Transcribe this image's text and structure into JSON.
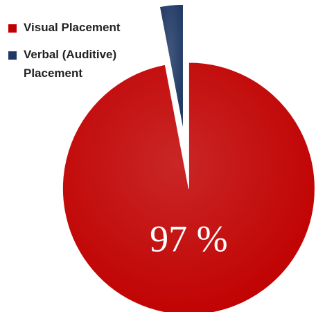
{
  "chart_data": {
    "type": "pie",
    "categories": [
      "Visual Placement",
      "Verbal (Auditive) Placement"
    ],
    "values": [
      97,
      3
    ],
    "value_labels": [
      "97 %",
      null
    ],
    "colors": [
      "#c00000",
      "#1f3864"
    ],
    "legend": "top-left"
  }
}
